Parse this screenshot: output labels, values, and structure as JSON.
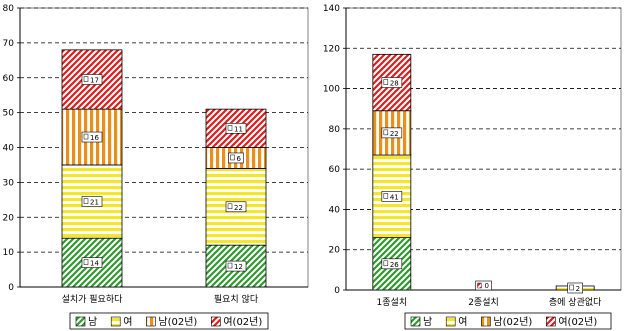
{
  "chart_data": [
    {
      "type": "bar",
      "stacked": true,
      "title": "",
      "xlabel": "",
      "ylabel": "",
      "categories": [
        "설치가 필요하다",
        "필요치 않다"
      ],
      "ylim": [
        0,
        80
      ],
      "yticks": [
        0,
        10,
        20,
        30,
        40,
        50,
        60,
        70,
        80
      ],
      "grid": true,
      "legend_position": "bottom",
      "series": [
        {
          "name": "남",
          "values": [
            14,
            12
          ],
          "color": "#2e9a2e",
          "hatch": "diagonal"
        },
        {
          "name": "여",
          "values": [
            21,
            22
          ],
          "color": "#f4e629",
          "hatch": "horizontal"
        },
        {
          "name": "남(02년)",
          "values": [
            16,
            6
          ],
          "color": "#e8901a",
          "hatch": "vertical"
        },
        {
          "name": "여(02년)",
          "values": [
            17,
            11
          ],
          "color": "#e11b1b",
          "hatch": "diagonal"
        }
      ],
      "data_labels": [
        [
          "14",
          "21",
          "16",
          "17"
        ],
        [
          "12",
          "22",
          "6",
          "11"
        ]
      ]
    },
    {
      "type": "bar",
      "stacked": true,
      "title": "",
      "xlabel": "",
      "ylabel": "",
      "categories": [
        "1종설치",
        "2종설치",
        "층에 상관없다"
      ],
      "ylim": [
        0,
        140
      ],
      "yticks": [
        0,
        20,
        40,
        60,
        80,
        100,
        120,
        140
      ],
      "grid": true,
      "legend_position": "bottom",
      "series": [
        {
          "name": "남",
          "values": [
            26,
            0,
            0
          ],
          "color": "#2e9a2e",
          "hatch": "diagonal"
        },
        {
          "name": "여",
          "values": [
            41,
            0,
            2
          ],
          "color": "#f4e629",
          "hatch": "horizontal"
        },
        {
          "name": "남(02년)",
          "values": [
            22,
            0,
            0
          ],
          "color": "#e8901a",
          "hatch": "vertical"
        },
        {
          "name": "여(02년)",
          "values": [
            28,
            0,
            0
          ],
          "color": "#e11b1b",
          "hatch": "diagonal"
        }
      ],
      "data_labels": [
        [
          "26",
          "41",
          "22",
          "28"
        ],
        [
          "0"
        ],
        [
          "2"
        ]
      ]
    }
  ]
}
